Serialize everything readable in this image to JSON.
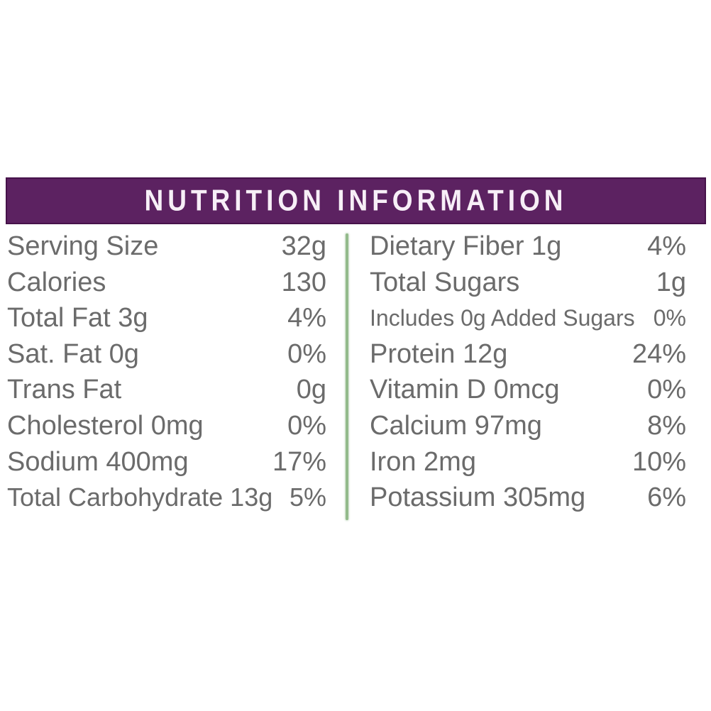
{
  "header": {
    "title": "NUTRITION INFORMATION"
  },
  "colors": {
    "background": "#ffffff",
    "header_bg": "#5c2261",
    "header_border": "#46124a",
    "header_text": "#f7eff7",
    "row_text": "#6b6b6b",
    "divider_green": "#93ba8b"
  },
  "nutrition": {
    "left_column": [
      {
        "label": "Serving Size",
        "value": "32g"
      },
      {
        "label": "Calories",
        "value": "130"
      },
      {
        "label": "Total Fat 3g",
        "value": "4%"
      },
      {
        "label": "Sat. Fat 0g",
        "value": "0%"
      },
      {
        "label": "Trans Fat",
        "value": "0g"
      },
      {
        "label": "Cholesterol 0mg",
        "value": "0%"
      },
      {
        "label": "Sodium 400mg",
        "value": "17%"
      },
      {
        "label": "Total Carbohydrate 13g",
        "value": "5%"
      }
    ],
    "right_column": [
      {
        "label": "Dietary Fiber 1g",
        "value": "4%"
      },
      {
        "label": "Total Sugars",
        "value": "1g"
      },
      {
        "label": "Includes 0g Added Sugars",
        "value": "0%"
      },
      {
        "label": "Protein 12g",
        "value": "24%"
      },
      {
        "label": "Vitamin D 0mcg",
        "value": "0%"
      },
      {
        "label": "Calcium 97mg",
        "value": "8%"
      },
      {
        "label": "Iron 2mg",
        "value": "10%"
      },
      {
        "label": "Potassium 305mg",
        "value": "6%"
      }
    ]
  }
}
